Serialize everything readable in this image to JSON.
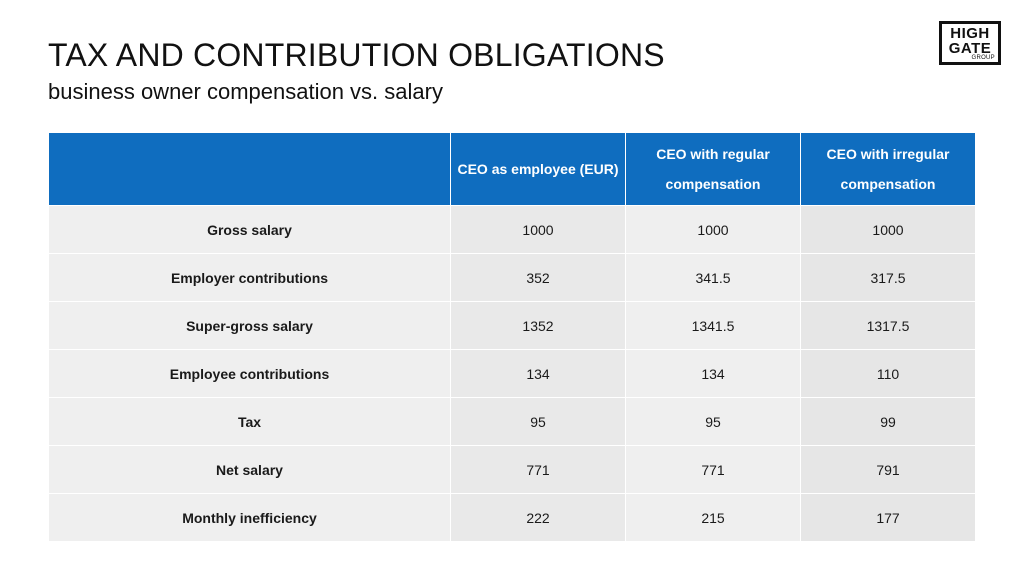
{
  "slide": {
    "title": "TAX AND CONTRIBUTION OBLIGATIONS",
    "subtitle": "business owner compensation vs. salary"
  },
  "logo": {
    "line1": "HIGH",
    "line2": "GATE",
    "line3": "GROUP"
  },
  "colors": {
    "header_bg": "#0f6dbf",
    "header_text": "#ffffff",
    "row_bg_light": "#efefef",
    "row_bg_dark": "#e6e6e6"
  },
  "table": {
    "columns": [
      "",
      "CEO as employee (EUR)",
      "CEO with regular compensation",
      "CEO with irregular compensation"
    ],
    "rows": [
      {
        "label": "Gross salary",
        "values": [
          "1000",
          "1000",
          "1000"
        ]
      },
      {
        "label": "Employer contributions",
        "values": [
          "352",
          "341.5",
          "317.5"
        ]
      },
      {
        "label": "Super-gross salary",
        "values": [
          "1352",
          "1341.5",
          "1317.5"
        ]
      },
      {
        "label": "Employee contributions",
        "values": [
          "134",
          "134",
          "110"
        ]
      },
      {
        "label": "Tax",
        "values": [
          "95",
          "95",
          "99"
        ]
      },
      {
        "label": "Net salary",
        "values": [
          "771",
          "771",
          "791"
        ]
      },
      {
        "label": "Monthly inefficiency",
        "values": [
          "222",
          "215",
          "177"
        ]
      }
    ]
  }
}
